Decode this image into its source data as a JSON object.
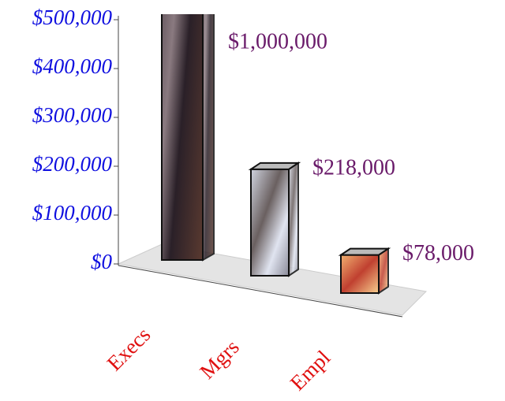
{
  "chart_data": {
    "type": "bar3d",
    "categories": [
      "Execs",
      "Mgrs",
      "Empl"
    ],
    "values": [
      1000000,
      218000,
      78000
    ],
    "value_labels": [
      "$1,000,000",
      "$218,000",
      "$78,000"
    ],
    "ylim": [
      0,
      500000
    ],
    "yticks": [
      {
        "value": 0,
        "label": "$0"
      },
      {
        "value": 100000,
        "label": "$100,000"
      },
      {
        "value": 200000,
        "label": "$200,000"
      },
      {
        "value": 300000,
        "label": "$300,000"
      },
      {
        "value": 400000,
        "label": "$400,000"
      },
      {
        "value": 500000,
        "label": "$500,000"
      }
    ]
  }
}
